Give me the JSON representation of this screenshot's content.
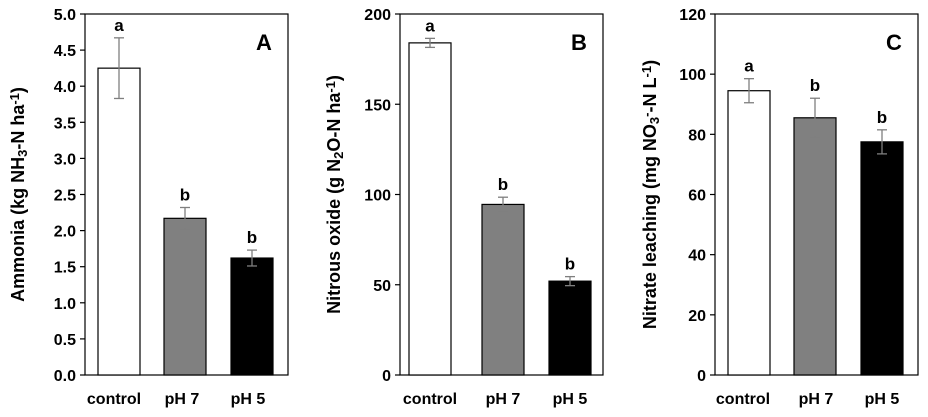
{
  "chart_data": [
    {
      "type": "bar",
      "panel_label": "A",
      "ylabel": "Ammonia (kg NH₃-N ha⁻¹)",
      "ylabel_parts": [
        {
          "t": "Ammonia (kg NH",
          "s": "n"
        },
        {
          "t": "3",
          "s": "sub"
        },
        {
          "t": "-N ha",
          "s": "n"
        },
        {
          "t": "-1",
          "s": "sup"
        },
        {
          "t": ")",
          "s": "n"
        }
      ],
      "categories": [
        "control",
        "pH 7",
        "pH 5"
      ],
      "values": [
        4.25,
        2.17,
        1.62
      ],
      "errors": [
        0.42,
        0.15,
        0.11
      ],
      "letters": [
        "a",
        "b",
        "b"
      ],
      "colors": [
        "#ffffff",
        "#808080",
        "#000000"
      ],
      "ylim": [
        0,
        5
      ],
      "yticks": [
        "0.0",
        "0.5",
        "1.0",
        "1.5",
        "2.0",
        "2.5",
        "3.0",
        "3.5",
        "4.0",
        "4.5",
        "5.0"
      ]
    },
    {
      "type": "bar",
      "panel_label": "B",
      "ylabel": "Nitrous oxide (g N₂O-N ha⁻¹)",
      "ylabel_parts": [
        {
          "t": "Nitrous oxide (g N",
          "s": "n"
        },
        {
          "t": "2",
          "s": "sub"
        },
        {
          "t": "O-N ha",
          "s": "n"
        },
        {
          "t": "-1",
          "s": "sup"
        },
        {
          "t": ")",
          "s": "n"
        }
      ],
      "categories": [
        "control",
        "pH 7",
        "pH 5"
      ],
      "values": [
        184,
        94.5,
        52
      ],
      "errors": [
        2.5,
        4,
        2.5
      ],
      "letters": [
        "a",
        "b",
        "b"
      ],
      "colors": [
        "#ffffff",
        "#808080",
        "#000000"
      ],
      "ylim": [
        0,
        200
      ],
      "yticks": [
        "0",
        "50",
        "100",
        "150",
        "200"
      ]
    },
    {
      "type": "bar",
      "panel_label": "C",
      "ylabel": "Nitrate leaching (mg NO₃⁻-N L⁻¹)",
      "ylabel_parts": [
        {
          "t": "Nitrate leaching (mg NO",
          "s": "n"
        },
        {
          "t": "3",
          "s": "sub"
        },
        {
          "t": "-",
          "s": "sup"
        },
        {
          "t": "-N L",
          "s": "n"
        },
        {
          "t": "-1",
          "s": "sup"
        },
        {
          "t": ")",
          "s": "n"
        }
      ],
      "categories": [
        "control",
        "pH 7",
        "pH 5"
      ],
      "values": [
        94.5,
        85.5,
        77.5
      ],
      "errors": [
        4,
        6.5,
        4
      ],
      "letters": [
        "a",
        "b",
        "b"
      ],
      "colors": [
        "#ffffff",
        "#808080",
        "#000000"
      ],
      "ylim": [
        0,
        120
      ],
      "yticks": [
        "0",
        "20",
        "40",
        "60",
        "80",
        "100",
        "120"
      ]
    }
  ]
}
